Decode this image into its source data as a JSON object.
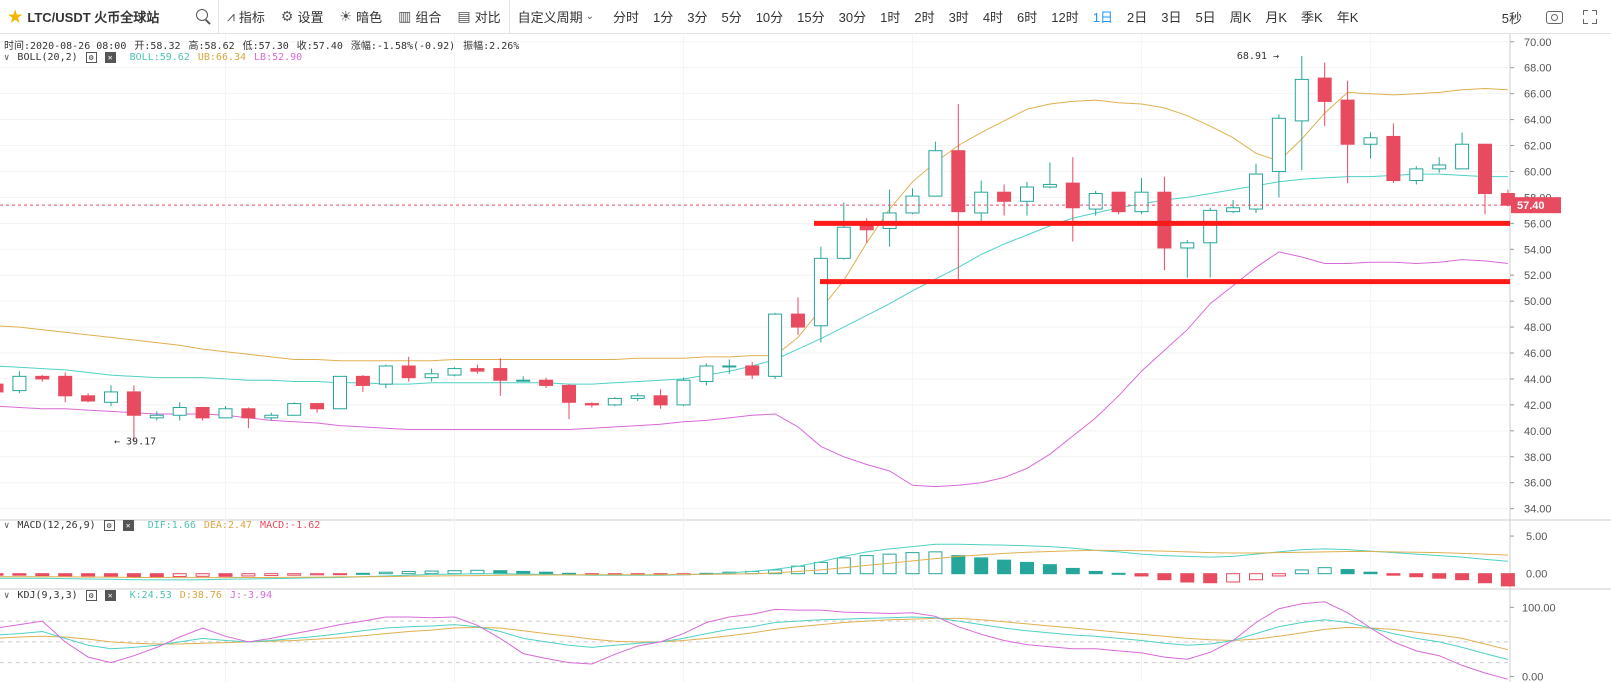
{
  "toolbar": {
    "symbol": "LTC/USDT 火币全球站",
    "indicators_label": "指标",
    "settings_label": "设置",
    "theme_label": "暗色",
    "layout_label": "组合",
    "compare_label": "对比",
    "custom_period_label": "自定义周期",
    "timeframes": [
      "分时",
      "1分",
      "3分",
      "5分",
      "10分",
      "15分",
      "30分",
      "1时",
      "2时",
      "3时",
      "4时",
      "6时",
      "12时",
      "1日",
      "2日",
      "3日",
      "5日",
      "周K",
      "月K",
      "季K",
      "年K"
    ],
    "active_timeframe": "1日",
    "refresh_interval": "5秒"
  },
  "ohlc": {
    "time": "时间:2020-08-26 08:00",
    "open": "开:58.32",
    "high": "高:58.62",
    "low": "低:57.30",
    "close": "收:57.40",
    "change": "涨幅:-1.58%(-0.92)",
    "amplitude": "振幅:2.26%"
  },
  "boll_legend": {
    "name": "BOLL(20,2)",
    "mid": "BOLL:59.62",
    "ub": "UB:66.34",
    "lb": "LB:52.90"
  },
  "macd_legend": {
    "name": "MACD(12,26,9)",
    "dif": "DIF:1.66",
    "dea": "DEA:2.47",
    "macd": "MACD:-1.62"
  },
  "kdj_legend": {
    "name": "KDJ(9,3,3)",
    "k": "K:24.53",
    "d": "D:38.76",
    "j": "J:-3.94"
  },
  "colors": {
    "up": "#26a69a",
    "down": "#e84a5f",
    "mid": "#4fd1c5",
    "ub": "#e0b050",
    "lb": "#d86ad8",
    "accent": "#2196f3",
    "hline": "#ff1a1a",
    "price_tag": "#e84a5f"
  },
  "chart_data": [
    {
      "type": "candlestick",
      "ylim": [
        33.2,
        70.6
      ],
      "y_ticks": [
        34,
        36,
        38,
        40,
        42,
        44,
        46,
        48,
        50,
        52,
        54,
        56,
        58,
        60,
        62,
        64,
        66,
        68,
        70
      ],
      "last_price": 57.4,
      "last_price_label": "57.40",
      "high_annotation": {
        "value": 68.91,
        "label": "68.91 →",
        "index": 56
      },
      "low_annotation": {
        "value": 39.17,
        "label": "← 39.17",
        "index": 5
      },
      "horizontal_lines": [
        56.0,
        51.5
      ],
      "candles": [
        [
          43.6,
          43.7,
          42.9,
          43.0
        ],
        [
          43.1,
          44.6,
          42.9,
          44.2
        ],
        [
          44.2,
          44.3,
          43.8,
          44.0
        ],
        [
          44.2,
          44.5,
          42.2,
          42.7
        ],
        [
          42.7,
          42.9,
          42.2,
          42.3
        ],
        [
          42.2,
          43.5,
          41.9,
          43.0
        ],
        [
          43.0,
          43.5,
          39.2,
          41.2
        ],
        [
          41.0,
          41.5,
          40.8,
          41.2
        ],
        [
          41.2,
          42.2,
          40.8,
          41.8
        ],
        [
          41.8,
          41.8,
          40.8,
          41.0
        ],
        [
          41.0,
          41.9,
          41.0,
          41.7
        ],
        [
          41.7,
          41.8,
          40.2,
          41.0
        ],
        [
          41.0,
          41.4,
          40.8,
          41.2
        ],
        [
          41.2,
          42.2,
          41.2,
          42.1
        ],
        [
          42.1,
          42.1,
          41.4,
          41.7
        ],
        [
          41.7,
          44.2,
          41.7,
          44.2
        ],
        [
          44.2,
          44.3,
          43.0,
          43.5
        ],
        [
          43.6,
          45.1,
          43.3,
          45.0
        ],
        [
          45.0,
          45.7,
          43.8,
          44.1
        ],
        [
          44.1,
          44.8,
          43.8,
          44.4
        ],
        [
          44.3,
          44.9,
          44.2,
          44.8
        ],
        [
          44.8,
          45.1,
          44.4,
          44.6
        ],
        [
          44.8,
          45.6,
          42.7,
          43.9
        ],
        [
          43.9,
          44.2,
          43.8,
          43.9
        ],
        [
          43.9,
          44.1,
          43.3,
          43.5
        ],
        [
          43.5,
          43.6,
          40.9,
          42.2
        ],
        [
          42.1,
          42.2,
          41.8,
          42.0
        ],
        [
          42.0,
          42.6,
          41.9,
          42.5
        ],
        [
          42.5,
          42.9,
          42.3,
          42.7
        ],
        [
          42.7,
          43.2,
          41.7,
          42.0
        ],
        [
          42.0,
          44.1,
          41.9,
          43.9
        ],
        [
          43.8,
          45.2,
          43.5,
          45.0
        ],
        [
          45.0,
          45.5,
          44.4,
          45.0
        ],
        [
          45.0,
          45.3,
          44.0,
          44.3
        ],
        [
          44.2,
          49.1,
          44.0,
          49.0
        ],
        [
          49.0,
          50.3,
          47.4,
          48.0
        ],
        [
          48.1,
          54.2,
          46.8,
          53.3
        ],
        [
          53.3,
          57.6,
          53.2,
          55.7
        ],
        [
          56.1,
          56.4,
          54.5,
          55.5
        ],
        [
          55.6,
          58.6,
          54.2,
          56.8
        ],
        [
          56.8,
          58.7,
          56.7,
          58.1
        ],
        [
          58.1,
          62.3,
          58.1,
          61.6
        ],
        [
          61.6,
          65.2,
          51.6,
          56.9
        ],
        [
          56.8,
          59.3,
          55.9,
          58.4
        ],
        [
          58.4,
          59.0,
          56.6,
          57.7
        ],
        [
          57.7,
          59.2,
          56.6,
          58.8
        ],
        [
          58.8,
          60.7,
          58.7,
          59.0
        ],
        [
          59.1,
          61.1,
          54.6,
          57.2
        ],
        [
          57.1,
          58.5,
          56.6,
          58.3
        ],
        [
          58.4,
          58.4,
          56.7,
          56.9
        ],
        [
          56.9,
          59.5,
          56.7,
          58.4
        ],
        [
          58.4,
          59.6,
          52.4,
          54.1
        ],
        [
          54.1,
          54.7,
          51.8,
          54.5
        ],
        [
          54.5,
          57.2,
          51.8,
          57.0
        ],
        [
          56.9,
          57.8,
          56.8,
          57.2
        ],
        [
          57.1,
          60.6,
          56.8,
          59.8
        ],
        [
          60.0,
          64.4,
          58.0,
          64.1
        ],
        [
          63.9,
          68.9,
          60.1,
          67.1
        ],
        [
          67.2,
          68.4,
          63.5,
          65.4
        ],
        [
          65.5,
          67.0,
          59.1,
          62.1
        ],
        [
          62.1,
          63.0,
          61.0,
          62.6
        ],
        [
          62.7,
          63.7,
          59.1,
          59.3
        ],
        [
          59.3,
          60.4,
          59.0,
          60.2
        ],
        [
          60.2,
          61.1,
          59.9,
          60.5
        ],
        [
          60.2,
          63.0,
          60.2,
          62.1
        ],
        [
          62.1,
          62.1,
          56.7,
          58.3
        ],
        [
          58.3,
          58.6,
          57.3,
          57.4
        ]
      ],
      "boll_mid": [
        45.0,
        44.9,
        44.8,
        44.7,
        44.5,
        44.3,
        44.2,
        44.1,
        44.1,
        44.1,
        44.0,
        43.9,
        43.9,
        43.8,
        43.8,
        43.7,
        43.7,
        43.6,
        43.6,
        43.7,
        43.7,
        43.7,
        43.7,
        43.7,
        43.7,
        43.6,
        43.6,
        43.7,
        43.8,
        43.9,
        44.0,
        44.3,
        44.6,
        45.0,
        45.5,
        46.3,
        47.1,
        48.0,
        48.9,
        49.8,
        50.8,
        51.7,
        52.6,
        53.6,
        54.4,
        55.1,
        55.8,
        56.4,
        56.8,
        57.2,
        57.5,
        57.8,
        58.0,
        58.3,
        58.6,
        58.9,
        59.2,
        59.4,
        59.5,
        59.6,
        59.6,
        59.7,
        59.8,
        59.8,
        59.7,
        59.6,
        59.6
      ],
      "boll_ub": [
        48.1,
        48.0,
        47.8,
        47.6,
        47.4,
        47.2,
        47.0,
        46.8,
        46.6,
        46.3,
        46.1,
        45.9,
        45.7,
        45.5,
        45.5,
        45.4,
        45.4,
        45.4,
        45.4,
        45.4,
        45.5,
        45.5,
        45.5,
        45.5,
        45.5,
        45.5,
        45.5,
        45.5,
        45.6,
        45.6,
        45.6,
        45.7,
        45.7,
        45.8,
        45.8,
        47.2,
        49.4,
        51.6,
        54.5,
        57.1,
        59.2,
        60.7,
        62.0,
        63.0,
        63.9,
        64.8,
        65.2,
        65.4,
        65.5,
        65.3,
        65.2,
        64.9,
        64.3,
        63.5,
        62.6,
        61.4,
        60.8,
        62.5,
        64.5,
        66.1,
        66.0,
        65.9,
        66.0,
        66.1,
        66.3,
        66.4,
        66.3
      ],
      "boll_lb": [
        41.9,
        41.8,
        41.7,
        41.7,
        41.6,
        41.5,
        41.4,
        41.3,
        41.3,
        41.3,
        41.2,
        41.0,
        40.8,
        40.7,
        40.6,
        40.4,
        40.3,
        40.2,
        40.1,
        40.1,
        40.1,
        40.1,
        40.1,
        40.1,
        40.1,
        40.1,
        40.2,
        40.3,
        40.4,
        40.5,
        40.7,
        40.8,
        41.0,
        41.2,
        41.3,
        40.3,
        38.8,
        38.0,
        37.4,
        36.9,
        35.8,
        35.7,
        35.8,
        36.0,
        36.4,
        37.1,
        38.2,
        39.6,
        41.0,
        42.7,
        44.6,
        46.2,
        47.8,
        49.8,
        51.2,
        52.6,
        53.8,
        53.4,
        52.9,
        52.9,
        53.0,
        53.0,
        52.9,
        53.0,
        53.2,
        53.1,
        52.9
      ]
    },
    {
      "type": "bar",
      "name": "MACD",
      "ylim": [
        -1.9,
        7.0
      ],
      "y_ticks": [
        0,
        5
      ],
      "y_tick_labels": [
        "0.00",
        "5.00"
      ],
      "macd": [
        -0.2,
        -0.2,
        -0.25,
        -0.3,
        -0.3,
        -0.35,
        -0.4,
        -0.4,
        -0.38,
        -0.35,
        -0.35,
        -0.3,
        -0.25,
        -0.2,
        -0.15,
        -0.1,
        0.05,
        0.2,
        0.3,
        0.35,
        0.4,
        0.45,
        0.4,
        0.3,
        0.2,
        0.05,
        -0.05,
        -0.1,
        -0.1,
        -0.12,
        -0.1,
        0.05,
        0.2,
        0.3,
        0.5,
        1.0,
        1.5,
        2.1,
        2.4,
        2.6,
        2.8,
        2.9,
        2.4,
        2.1,
        1.8,
        1.5,
        1.2,
        0.7,
        0.3,
        0.05,
        -0.3,
        -0.8,
        -1.1,
        -1.2,
        -1.1,
        -0.8,
        -0.3,
        0.5,
        0.8,
        0.55,
        0.2,
        -0.2,
        -0.4,
        -0.6,
        -0.8,
        -1.2,
        -1.62
      ],
      "dif": [
        -0.6,
        -0.6,
        -0.6,
        -0.65,
        -0.7,
        -0.75,
        -0.8,
        -0.82,
        -0.82,
        -0.8,
        -0.75,
        -0.7,
        -0.65,
        -0.6,
        -0.55,
        -0.5,
        -0.4,
        -0.3,
        -0.2,
        -0.1,
        -0.05,
        0.0,
        0.0,
        -0.05,
        -0.1,
        -0.15,
        -0.2,
        -0.2,
        -0.2,
        -0.2,
        -0.15,
        -0.05,
        0.1,
        0.3,
        0.6,
        1.0,
        1.6,
        2.3,
        2.9,
        3.3,
        3.6,
        3.9,
        3.9,
        3.85,
        3.8,
        3.7,
        3.6,
        3.4,
        3.1,
        2.9,
        2.6,
        2.4,
        2.3,
        2.2,
        2.3,
        2.6,
        2.9,
        3.2,
        3.3,
        3.2,
        3.0,
        2.8,
        2.6,
        2.4,
        2.2,
        1.9,
        1.66
      ],
      "dea": [
        -0.4,
        -0.4,
        -0.4,
        -0.4,
        -0.45,
        -0.45,
        -0.5,
        -0.5,
        -0.52,
        -0.52,
        -0.52,
        -0.5,
        -0.5,
        -0.48,
        -0.45,
        -0.43,
        -0.4,
        -0.38,
        -0.35,
        -0.3,
        -0.28,
        -0.25,
        -0.2,
        -0.18,
        -0.17,
        -0.16,
        -0.15,
        -0.14,
        -0.14,
        -0.13,
        -0.1,
        -0.08,
        -0.05,
        0.0,
        0.1,
        0.3,
        0.5,
        0.8,
        1.1,
        1.4,
        1.7,
        2.0,
        2.3,
        2.5,
        2.7,
        2.85,
        2.95,
        3.05,
        3.1,
        3.1,
        3.05,
        3.0,
        2.9,
        2.8,
        2.75,
        2.75,
        2.8,
        2.85,
        2.9,
        2.95,
        2.95,
        2.9,
        2.85,
        2.8,
        2.7,
        2.6,
        2.47
      ]
    },
    {
      "type": "line",
      "name": "KDJ",
      "ylim": [
        -8,
        125
      ],
      "y_ticks": [
        0,
        100
      ],
      "y_tick_labels": [
        "0.00",
        "100.00"
      ],
      "dashed_levels": [
        20,
        50,
        80
      ],
      "k": [
        60,
        62,
        65,
        55,
        45,
        40,
        42,
        45,
        50,
        55,
        52,
        50,
        52,
        55,
        58,
        62,
        66,
        70,
        72,
        73,
        75,
        72,
        65,
        55,
        50,
        45,
        42,
        45,
        48,
        50,
        55,
        62,
        68,
        72,
        78,
        80,
        82,
        83,
        84,
        85,
        86,
        85,
        80,
        75,
        70,
        66,
        63,
        60,
        58,
        55,
        52,
        48,
        45,
        47,
        52,
        62,
        72,
        78,
        82,
        78,
        70,
        62,
        55,
        50,
        42,
        33,
        24.53
      ],
      "d": [
        55,
        57,
        58,
        57,
        54,
        50,
        48,
        47,
        47,
        48,
        49,
        50,
        51,
        52,
        54,
        56,
        59,
        62,
        65,
        67,
        70,
        71,
        70,
        66,
        62,
        58,
        54,
        51,
        50,
        50,
        52,
        55,
        59,
        63,
        68,
        72,
        75,
        78,
        80,
        82,
        83,
        84,
        84,
        82,
        79,
        76,
        73,
        70,
        67,
        64,
        61,
        58,
        55,
        53,
        52,
        54,
        58,
        63,
        68,
        71,
        70,
        68,
        64,
        60,
        55,
        47,
        38.76
      ],
      "j": [
        70,
        75,
        80,
        50,
        28,
        20,
        30,
        42,
        57,
        70,
        58,
        50,
        55,
        62,
        68,
        75,
        80,
        86,
        86,
        85,
        86,
        74,
        55,
        33,
        26,
        20,
        18,
        32,
        44,
        50,
        62,
        78,
        86,
        90,
        97,
        96,
        96,
        93,
        92,
        91,
        92,
        87,
        72,
        61,
        52,
        46,
        43,
        40,
        40,
        37,
        34,
        28,
        25,
        35,
        52,
        78,
        98,
        105,
        108,
        92,
        70,
        50,
        37,
        30,
        16,
        5,
        -3.94
      ]
    }
  ]
}
